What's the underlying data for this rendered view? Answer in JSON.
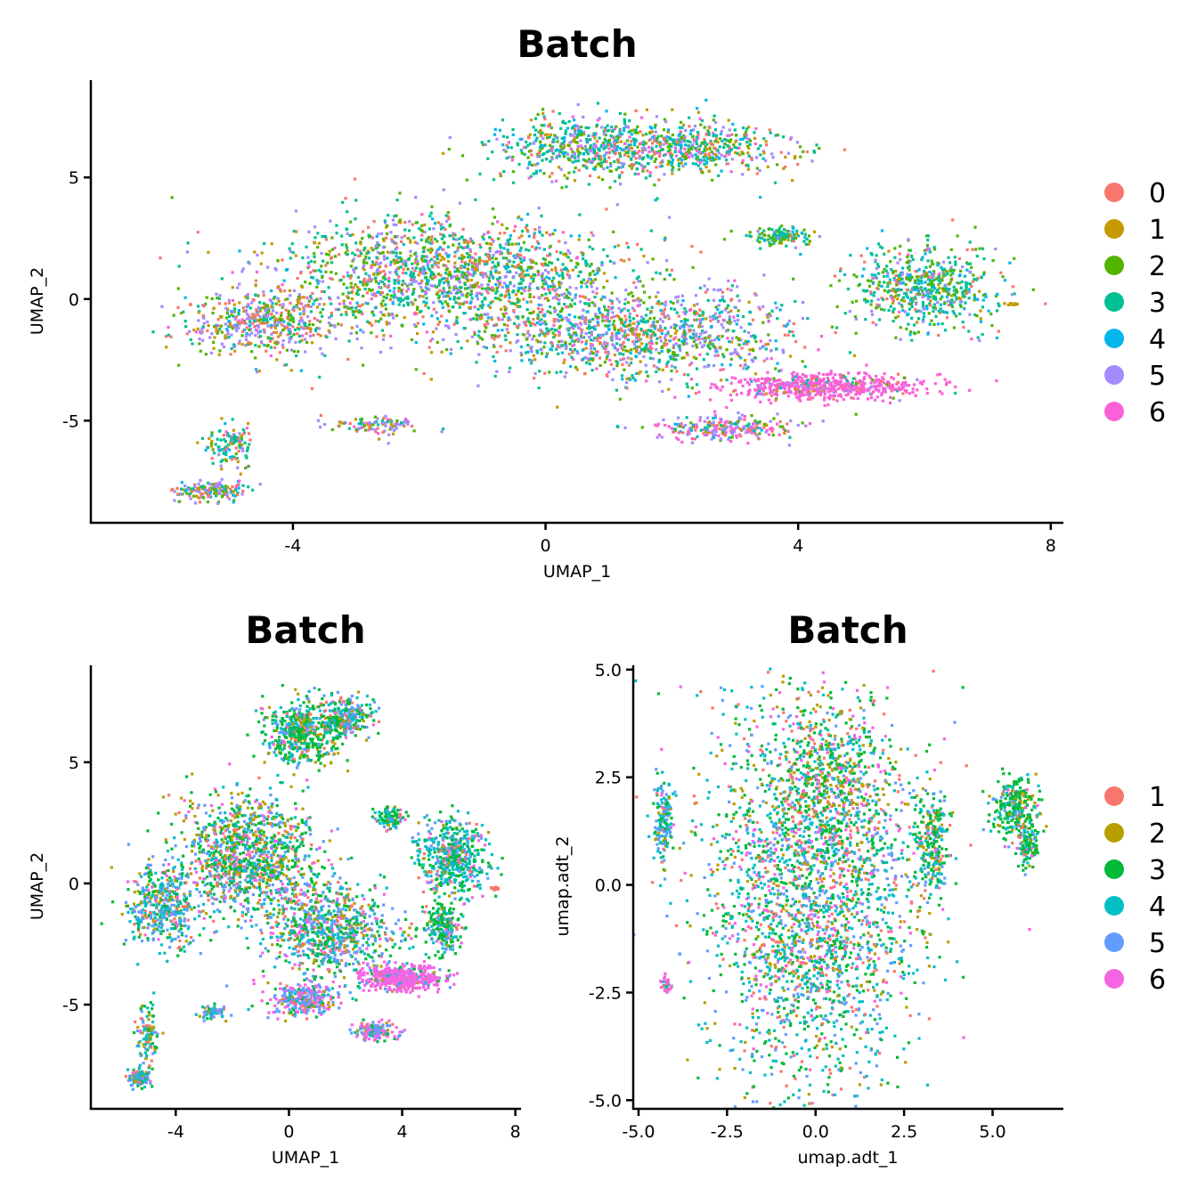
{
  "chart_data": [
    {
      "type": "scatter",
      "title": "Batch",
      "xlabel": "UMAP_1",
      "ylabel": "UMAP_2",
      "xlim": [
        -7.2,
        8.2
      ],
      "ylim": [
        -9.2,
        9.0
      ],
      "xticks": [
        -4,
        0,
        4,
        8
      ],
      "xtick_labels": [
        "-4",
        "0",
        "4",
        "8"
      ],
      "yticks": [
        -5,
        0,
        5
      ],
      "ytick_labels": [
        "-5",
        "0",
        "5"
      ],
      "legend": {
        "position": "right",
        "entries": [
          {
            "label": "0",
            "color": "#F8766D"
          },
          {
            "label": "1",
            "color": "#C49A00"
          },
          {
            "label": "2",
            "color": "#53B400"
          },
          {
            "label": "3",
            "color": "#00C094"
          },
          {
            "label": "4",
            "color": "#00B6EB"
          },
          {
            "label": "5",
            "color": "#A58AFF"
          },
          {
            "label": "6",
            "color": "#FB61D7"
          }
        ]
      },
      "clusters": [
        {
          "cx": -1.5,
          "cy": 1.0,
          "rx": 2.8,
          "ry": 2.4,
          "n": 1600,
          "weights": [
            0.12,
            0.1,
            0.2,
            0.25,
            0.08,
            0.2,
            0.05
          ]
        },
        {
          "cx": -4.5,
          "cy": -1.0,
          "rx": 1.3,
          "ry": 1.5,
          "n": 500,
          "weights": [
            0.2,
            0.15,
            0.12,
            0.15,
            0.05,
            0.3,
            0.03
          ]
        },
        {
          "cx": 1.5,
          "cy": -1.5,
          "rx": 2.5,
          "ry": 1.8,
          "n": 1100,
          "weights": [
            0.15,
            0.1,
            0.15,
            0.2,
            0.1,
            0.25,
            0.05
          ]
        },
        {
          "cx": 0.8,
          "cy": 6.2,
          "rx": 1.6,
          "ry": 1.3,
          "n": 600,
          "weights": [
            0.1,
            0.08,
            0.2,
            0.3,
            0.1,
            0.15,
            0.07
          ]
        },
        {
          "cx": 2.5,
          "cy": 6.2,
          "rx": 1.4,
          "ry": 1.0,
          "n": 400,
          "weights": [
            0.12,
            0.1,
            0.18,
            0.25,
            0.08,
            0.2,
            0.07
          ]
        },
        {
          "cx": 6.0,
          "cy": 0.5,
          "rx": 1.2,
          "ry": 1.7,
          "n": 600,
          "weights": [
            0.08,
            0.06,
            0.25,
            0.35,
            0.15,
            0.1,
            0.01
          ]
        },
        {
          "cx": 4.4,
          "cy": -3.6,
          "rx": 1.6,
          "ry": 0.5,
          "n": 600,
          "weights": [
            0.05,
            0.02,
            0.03,
            0.03,
            0.02,
            0.05,
            0.8
          ]
        },
        {
          "cx": 2.8,
          "cy": -5.3,
          "rx": 1.1,
          "ry": 0.5,
          "n": 250,
          "weights": [
            0.1,
            0.05,
            0.15,
            0.1,
            0.05,
            0.3,
            0.25
          ]
        },
        {
          "cx": 3.7,
          "cy": 2.6,
          "rx": 0.5,
          "ry": 0.4,
          "n": 120,
          "weights": [
            0.05,
            0.05,
            0.3,
            0.4,
            0.1,
            0.1,
            0.0
          ]
        },
        {
          "cx": -5.3,
          "cy": -7.9,
          "rx": 0.6,
          "ry": 0.4,
          "n": 160,
          "weights": [
            0.15,
            0.1,
            0.15,
            0.15,
            0.1,
            0.3,
            0.05
          ]
        },
        {
          "cx": -5.0,
          "cy": -6.0,
          "rx": 0.4,
          "ry": 1.0,
          "n": 120,
          "weights": [
            0.1,
            0.1,
            0.2,
            0.3,
            0.1,
            0.15,
            0.05
          ]
        },
        {
          "cx": -2.7,
          "cy": -5.2,
          "rx": 0.7,
          "ry": 0.4,
          "n": 100,
          "weights": [
            0.2,
            0.1,
            0.15,
            0.1,
            0.05,
            0.35,
            0.05
          ]
        },
        {
          "cx": 7.4,
          "cy": -0.2,
          "rx": 0.12,
          "ry": 0.05,
          "n": 12,
          "weights": [
            0,
            1,
            0,
            0,
            0,
            0,
            0
          ]
        }
      ]
    },
    {
      "type": "scatter",
      "title": "Batch",
      "xlabel": "UMAP_1",
      "ylabel": "UMAP_2",
      "xlim": [
        -7.0,
        8.2
      ],
      "ylim": [
        -9.3,
        9.0
      ],
      "xticks": [
        -4,
        0,
        4,
        8
      ],
      "xtick_labels": [
        "-4",
        "0",
        "4",
        "8"
      ],
      "yticks": [
        -5,
        0,
        5
      ],
      "ytick_labels": [
        "-5",
        "0",
        "5"
      ],
      "legend": {
        "position": "right",
        "entries": [
          {
            "label": "1",
            "color": "#F8766D"
          },
          {
            "label": "2",
            "color": "#B79F00"
          },
          {
            "label": "3",
            "color": "#00BA38"
          },
          {
            "label": "4",
            "color": "#00BFC4"
          },
          {
            "label": "5",
            "color": "#619CFF"
          },
          {
            "label": "6",
            "color": "#F564E3"
          }
        ]
      },
      "clusters": [
        {
          "cx": -1.5,
          "cy": 1.0,
          "rx": 2.6,
          "ry": 2.5,
          "n": 1200,
          "weights": [
            0.1,
            0.15,
            0.3,
            0.15,
            0.2,
            0.1
          ]
        },
        {
          "cx": -4.5,
          "cy": -1.0,
          "rx": 1.2,
          "ry": 1.6,
          "n": 400,
          "weights": [
            0.1,
            0.1,
            0.2,
            0.3,
            0.25,
            0.05
          ]
        },
        {
          "cx": 1.5,
          "cy": -2.0,
          "rx": 2.3,
          "ry": 1.8,
          "n": 800,
          "weights": [
            0.1,
            0.1,
            0.25,
            0.2,
            0.25,
            0.1
          ]
        },
        {
          "cx": 0.5,
          "cy": 6.2,
          "rx": 1.3,
          "ry": 1.4,
          "n": 500,
          "weights": [
            0.05,
            0.1,
            0.45,
            0.2,
            0.15,
            0.05
          ]
        },
        {
          "cx": 2.0,
          "cy": 6.8,
          "rx": 1.0,
          "ry": 0.8,
          "n": 250,
          "weights": [
            0.1,
            0.1,
            0.35,
            0.2,
            0.2,
            0.05
          ]
        },
        {
          "cx": 5.8,
          "cy": 1.0,
          "rx": 1.2,
          "ry": 1.5,
          "n": 500,
          "weights": [
            0.05,
            0.05,
            0.35,
            0.35,
            0.15,
            0.05
          ]
        },
        {
          "cx": 5.5,
          "cy": -1.8,
          "rx": 0.6,
          "ry": 1.0,
          "n": 200,
          "weights": [
            0.05,
            0.05,
            0.5,
            0.2,
            0.15,
            0.05
          ]
        },
        {
          "cx": 4.0,
          "cy": -3.9,
          "rx": 1.4,
          "ry": 0.5,
          "n": 500,
          "weights": [
            0.02,
            0.02,
            0.03,
            0.03,
            0.05,
            0.85
          ]
        },
        {
          "cx": 0.5,
          "cy": -4.8,
          "rx": 1.2,
          "ry": 0.7,
          "n": 300,
          "weights": [
            0.05,
            0.1,
            0.1,
            0.1,
            0.3,
            0.35
          ]
        },
        {
          "cx": 3.0,
          "cy": -6.1,
          "rx": 0.7,
          "ry": 0.4,
          "n": 150,
          "weights": [
            0.1,
            0.05,
            0.1,
            0.1,
            0.25,
            0.4
          ]
        },
        {
          "cx": 3.6,
          "cy": 2.7,
          "rx": 0.5,
          "ry": 0.5,
          "n": 100,
          "weights": [
            0.05,
            0.05,
            0.5,
            0.25,
            0.1,
            0.05
          ]
        },
        {
          "cx": -5.3,
          "cy": -8.0,
          "rx": 0.4,
          "ry": 0.4,
          "n": 120,
          "weights": [
            0.1,
            0.1,
            0.2,
            0.2,
            0.35,
            0.05
          ]
        },
        {
          "cx": -5.0,
          "cy": -6.2,
          "rx": 0.4,
          "ry": 1.1,
          "n": 100,
          "weights": [
            0.1,
            0.1,
            0.25,
            0.3,
            0.2,
            0.05
          ]
        },
        {
          "cx": -2.7,
          "cy": -5.3,
          "rx": 0.5,
          "ry": 0.3,
          "n": 60,
          "weights": [
            0.05,
            0.05,
            0.2,
            0.3,
            0.35,
            0.05
          ]
        },
        {
          "cx": 7.3,
          "cy": -0.2,
          "rx": 0.12,
          "ry": 0.05,
          "n": 10,
          "weights": [
            1,
            0,
            0,
            0,
            0,
            0
          ]
        }
      ]
    },
    {
      "type": "scatter",
      "title": "Batch",
      "xlabel": "umap.adt_1",
      "ylabel": "umap.adt_2",
      "xlim": [
        -5.15,
        7.0
      ],
      "ylim": [
        -5.2,
        5.1
      ],
      "xticks": [
        -5.0,
        -2.5,
        0.0,
        2.5,
        5.0
      ],
      "xtick_labels": [
        "-5.0",
        "-2.5",
        "0.0",
        "2.5",
        "5.0"
      ],
      "yticks": [
        -5.0,
        -2.5,
        0.0,
        2.5,
        5.0
      ],
      "ytick_labels": [
        "-5.0",
        "-2.5",
        "0.0",
        "2.5",
        "5.0"
      ],
      "legend_ref": 1,
      "clusters": [
        {
          "cx": -0.1,
          "cy": -0.1,
          "rx": 3.0,
          "ry": 4.5,
          "n": 2600,
          "weights": [
            0.12,
            0.12,
            0.25,
            0.26,
            0.15,
            0.1
          ]
        },
        {
          "cx": 0.5,
          "cy": 2.5,
          "rx": 1.8,
          "ry": 1.6,
          "n": 400,
          "weights": [
            0.15,
            0.2,
            0.3,
            0.15,
            0.1,
            0.1
          ]
        },
        {
          "cx": 3.3,
          "cy": 1.0,
          "rx": 0.5,
          "ry": 1.2,
          "n": 250,
          "weights": [
            0.05,
            0.1,
            0.45,
            0.25,
            0.1,
            0.05
          ]
        },
        {
          "cx": 5.6,
          "cy": 1.8,
          "rx": 0.7,
          "ry": 0.7,
          "n": 250,
          "weights": [
            0.05,
            0.15,
            0.5,
            0.2,
            0.05,
            0.05
          ]
        },
        {
          "cx": 6.0,
          "cy": 0.9,
          "rx": 0.3,
          "ry": 0.6,
          "n": 120,
          "weights": [
            0.05,
            0.1,
            0.5,
            0.25,
            0.05,
            0.05
          ]
        },
        {
          "cx": -4.3,
          "cy": 1.5,
          "rx": 0.3,
          "ry": 0.9,
          "n": 150,
          "weights": [
            0.05,
            0.05,
            0.2,
            0.35,
            0.3,
            0.05
          ]
        },
        {
          "cx": -4.2,
          "cy": -2.3,
          "rx": 0.15,
          "ry": 0.2,
          "n": 40,
          "weights": [
            0.1,
            0.0,
            0.1,
            0.1,
            0.1,
            0.6
          ]
        }
      ]
    }
  ]
}
